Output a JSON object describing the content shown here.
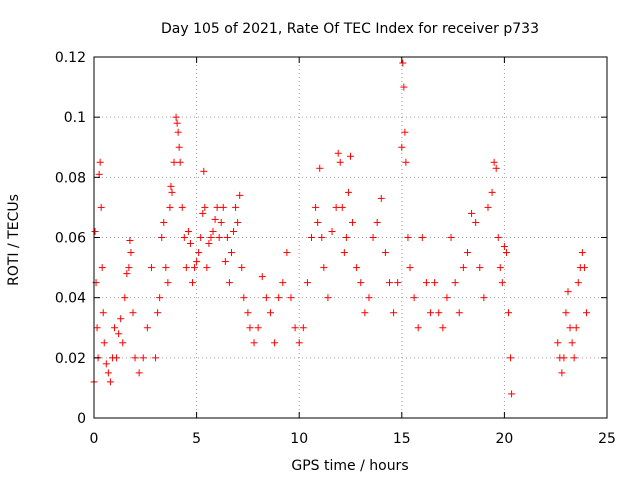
{
  "chart_data": {
    "type": "scatter",
    "title": "Day 105 of 2021, Rate Of TEC Index for receiver p733",
    "xlabel": "GPS time / hours",
    "ylabel": "ROTI / TECUs",
    "xlim": [
      0,
      25
    ],
    "ylim": [
      0,
      0.12
    ],
    "x_ticks": [
      0,
      5,
      10,
      15,
      20,
      25
    ],
    "x_tick_labels": [
      "0",
      "5",
      "10",
      "15",
      "20",
      "25"
    ],
    "y_ticks": [
      0,
      0.02,
      0.04,
      0.06,
      0.08,
      0.1,
      0.12
    ],
    "y_tick_labels": [
      "0",
      "0.02",
      "0.04",
      "0.06",
      "0.08",
      "0.1",
      "0.12"
    ],
    "grid": true,
    "marker": "plus",
    "color": "#ff0000",
    "points": [
      [
        0.0,
        0.012
      ],
      [
        0.05,
        0.062
      ],
      [
        0.1,
        0.045
      ],
      [
        0.15,
        0.03
      ],
      [
        0.2,
        0.02
      ],
      [
        0.25,
        0.081
      ],
      [
        0.3,
        0.085
      ],
      [
        0.35,
        0.07
      ],
      [
        0.4,
        0.05
      ],
      [
        0.45,
        0.035
      ],
      [
        0.5,
        0.025
      ],
      [
        0.6,
        0.018
      ],
      [
        0.7,
        0.015
      ],
      [
        0.8,
        0.012
      ],
      [
        0.9,
        0.02
      ],
      [
        1.0,
        0.03
      ],
      [
        1.1,
        0.02
      ],
      [
        1.2,
        0.028
      ],
      [
        1.3,
        0.033
      ],
      [
        1.4,
        0.025
      ],
      [
        1.5,
        0.04
      ],
      [
        1.6,
        0.048
      ],
      [
        1.7,
        0.05
      ],
      [
        1.75,
        0.059
      ],
      [
        1.8,
        0.055
      ],
      [
        1.9,
        0.035
      ],
      [
        2.0,
        0.02
      ],
      [
        2.2,
        0.015
      ],
      [
        2.4,
        0.02
      ],
      [
        2.6,
        0.03
      ],
      [
        2.8,
        0.05
      ],
      [
        3.0,
        0.02
      ],
      [
        3.1,
        0.035
      ],
      [
        3.2,
        0.04
      ],
      [
        3.3,
        0.06
      ],
      [
        3.4,
        0.065
      ],
      [
        3.5,
        0.05
      ],
      [
        3.6,
        0.045
      ],
      [
        3.7,
        0.07
      ],
      [
        3.75,
        0.077
      ],
      [
        3.8,
        0.075
      ],
      [
        3.9,
        0.085
      ],
      [
        4.0,
        0.1
      ],
      [
        4.05,
        0.098
      ],
      [
        4.1,
        0.095
      ],
      [
        4.15,
        0.09
      ],
      [
        4.2,
        0.085
      ],
      [
        4.3,
        0.07
      ],
      [
        4.4,
        0.06
      ],
      [
        4.5,
        0.05
      ],
      [
        4.6,
        0.062
      ],
      [
        4.7,
        0.058
      ],
      [
        4.8,
        0.045
      ],
      [
        4.9,
        0.05
      ],
      [
        5.0,
        0.052
      ],
      [
        5.1,
        0.055
      ],
      [
        5.2,
        0.06
      ],
      [
        5.3,
        0.068
      ],
      [
        5.35,
        0.082
      ],
      [
        5.4,
        0.07
      ],
      [
        5.5,
        0.05
      ],
      [
        5.6,
        0.058
      ],
      [
        5.7,
        0.06
      ],
      [
        5.8,
        0.062
      ],
      [
        5.9,
        0.066
      ],
      [
        6.0,
        0.07
      ],
      [
        6.1,
        0.06
      ],
      [
        6.2,
        0.065
      ],
      [
        6.3,
        0.07
      ],
      [
        6.4,
        0.052
      ],
      [
        6.5,
        0.06
      ],
      [
        6.6,
        0.045
      ],
      [
        6.7,
        0.055
      ],
      [
        6.8,
        0.062
      ],
      [
        6.9,
        0.07
      ],
      [
        7.0,
        0.065
      ],
      [
        7.1,
        0.074
      ],
      [
        7.2,
        0.05
      ],
      [
        7.3,
        0.04
      ],
      [
        7.5,
        0.035
      ],
      [
        7.6,
        0.03
      ],
      [
        7.8,
        0.025
      ],
      [
        8.0,
        0.03
      ],
      [
        8.2,
        0.047
      ],
      [
        8.4,
        0.04
      ],
      [
        8.6,
        0.035
      ],
      [
        8.8,
        0.025
      ],
      [
        9.0,
        0.04
      ],
      [
        9.2,
        0.045
      ],
      [
        9.4,
        0.055
      ],
      [
        9.6,
        0.04
      ],
      [
        9.8,
        0.03
      ],
      [
        10.0,
        0.025
      ],
      [
        10.2,
        0.03
      ],
      [
        10.4,
        0.045
      ],
      [
        10.6,
        0.06
      ],
      [
        10.8,
        0.07
      ],
      [
        10.9,
        0.065
      ],
      [
        11.0,
        0.083
      ],
      [
        11.1,
        0.06
      ],
      [
        11.2,
        0.05
      ],
      [
        11.4,
        0.04
      ],
      [
        11.6,
        0.062
      ],
      [
        11.8,
        0.07
      ],
      [
        11.9,
        0.088
      ],
      [
        12.0,
        0.085
      ],
      [
        12.1,
        0.07
      ],
      [
        12.2,
        0.055
      ],
      [
        12.3,
        0.06
      ],
      [
        12.4,
        0.075
      ],
      [
        12.5,
        0.087
      ],
      [
        12.6,
        0.065
      ],
      [
        12.8,
        0.05
      ],
      [
        13.0,
        0.045
      ],
      [
        13.2,
        0.035
      ],
      [
        13.4,
        0.04
      ],
      [
        13.6,
        0.06
      ],
      [
        13.8,
        0.065
      ],
      [
        14.0,
        0.073
      ],
      [
        14.2,
        0.055
      ],
      [
        14.4,
        0.045
      ],
      [
        14.6,
        0.035
      ],
      [
        14.8,
        0.045
      ],
      [
        15.0,
        0.09
      ],
      [
        15.05,
        0.118
      ],
      [
        15.1,
        0.11
      ],
      [
        15.15,
        0.095
      ],
      [
        15.2,
        0.085
      ],
      [
        15.3,
        0.06
      ],
      [
        15.4,
        0.05
      ],
      [
        15.6,
        0.04
      ],
      [
        15.8,
        0.03
      ],
      [
        16.0,
        0.06
      ],
      [
        16.2,
        0.045
      ],
      [
        16.4,
        0.035
      ],
      [
        16.6,
        0.045
      ],
      [
        16.8,
        0.035
      ],
      [
        17.0,
        0.03
      ],
      [
        17.2,
        0.04
      ],
      [
        17.4,
        0.06
      ],
      [
        17.6,
        0.045
      ],
      [
        17.8,
        0.035
      ],
      [
        18.0,
        0.05
      ],
      [
        18.2,
        0.055
      ],
      [
        18.4,
        0.068
      ],
      [
        18.6,
        0.065
      ],
      [
        18.8,
        0.05
      ],
      [
        19.0,
        0.04
      ],
      [
        19.2,
        0.07
      ],
      [
        19.4,
        0.075
      ],
      [
        19.5,
        0.085
      ],
      [
        19.6,
        0.083
      ],
      [
        19.7,
        0.06
      ],
      [
        19.8,
        0.05
      ],
      [
        19.9,
        0.045
      ],
      [
        20.0,
        0.057
      ],
      [
        20.1,
        0.055
      ],
      [
        20.2,
        0.035
      ],
      [
        20.3,
        0.02
      ],
      [
        20.35,
        0.008
      ],
      [
        22.6,
        0.025
      ],
      [
        22.7,
        0.02
      ],
      [
        22.8,
        0.015
      ],
      [
        22.9,
        0.02
      ],
      [
        23.0,
        0.035
      ],
      [
        23.1,
        0.042
      ],
      [
        23.2,
        0.03
      ],
      [
        23.3,
        0.025
      ],
      [
        23.4,
        0.02
      ],
      [
        23.5,
        0.03
      ],
      [
        23.6,
        0.045
      ],
      [
        23.7,
        0.05
      ],
      [
        23.8,
        0.055
      ],
      [
        23.9,
        0.05
      ],
      [
        24.0,
        0.035
      ]
    ]
  }
}
